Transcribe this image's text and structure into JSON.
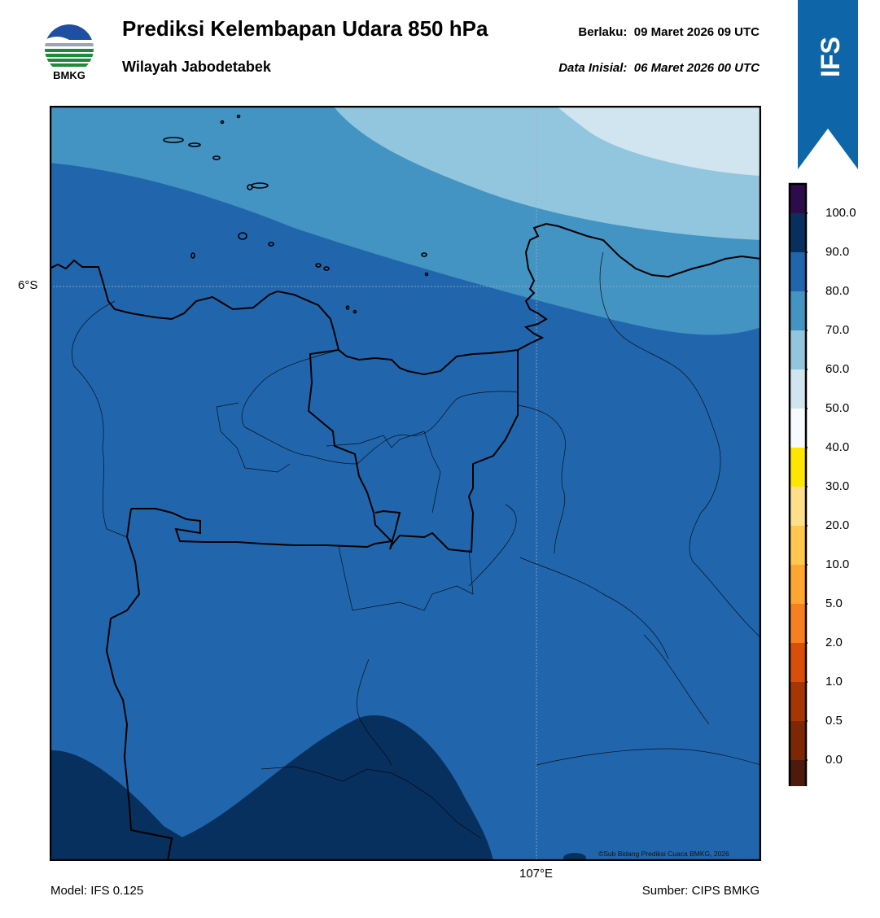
{
  "header": {
    "logo_text": "BMKG",
    "title": "Prediksi Kelembapan Udara 850 hPa",
    "subtitle": "Wilayah Jabodetabek",
    "valid_label": "Berlaku:",
    "valid_time": "09 Maret 2026 09 UTC",
    "init_label": "Data Inisial:",
    "init_time": "06 Maret 2026 00 UTC"
  },
  "badge": {
    "text": "IFS",
    "color": "#0e66a8"
  },
  "map": {
    "lat_label": "6°S",
    "lon_label": "107°E",
    "credit": "©Sub Bidang Prediksi Cuaca BMKG, 2026",
    "dominant_band": "80.0–90.0",
    "colors": {
      "band_90_100": "#08305e",
      "band_80_90": "#2166ac",
      "band_70_80": "#4393c3",
      "band_60_70": "#92c5de",
      "band_50_60": "#d1e5f0"
    }
  },
  "colorbar": {
    "ticks": [
      "100.0",
      "90.0",
      "80.0",
      "70.0",
      "60.0",
      "50.0",
      "40.0",
      "30.0",
      "20.0",
      "10.0",
      "5.0",
      "2.0",
      "1.0",
      "0.5",
      "0.0"
    ],
    "colors_top_to_bottom": [
      "#2d0c4a",
      "#08305e",
      "#2166ac",
      "#4393c3",
      "#92c5de",
      "#d1e5f0",
      "#f7fbff",
      "#ffe600",
      "#ffe08a",
      "#ffc74d",
      "#ffa531",
      "#f77f1f",
      "#d94f0a",
      "#a63603",
      "#7f2704",
      "#4d1a0b",
      "#b30c14",
      "#e8382c"
    ]
  },
  "footer": {
    "model": "Model: IFS 0.125",
    "source": "Sumber: CIPS BMKG"
  }
}
